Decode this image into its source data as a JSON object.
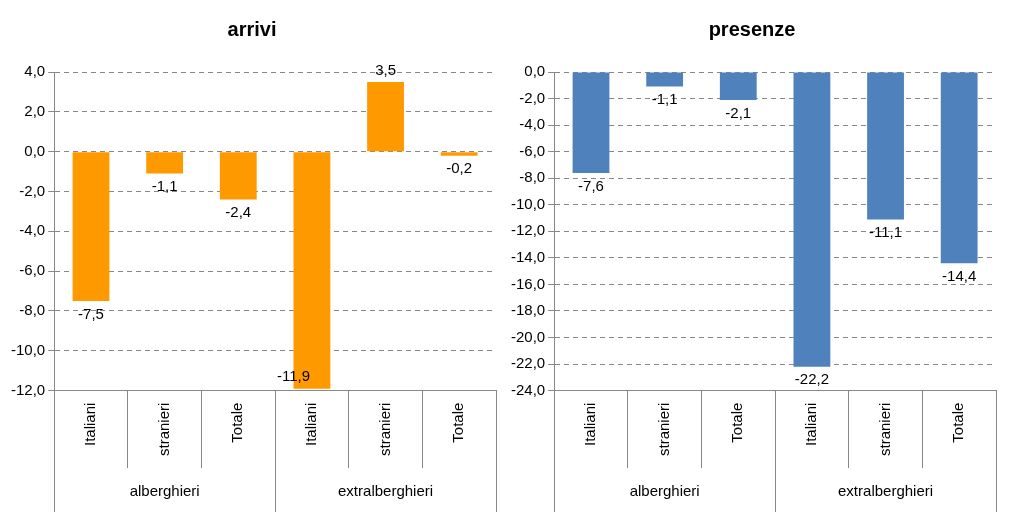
{
  "chart_data": [
    {
      "type": "bar",
      "title": "arrivi",
      "categories": [
        "Italiani",
        "stranieri",
        "Totale",
        "Italiani",
        "stranieri",
        "Totale"
      ],
      "values": [
        -7.5,
        -1.1,
        -2.4,
        -11.9,
        3.5,
        -0.2
      ],
      "color": "#ff9900",
      "value_labels": [
        "-7,5",
        "-1,1",
        "-2,4",
        "-11,9",
        "3,5",
        "-0,2"
      ],
      "ylim": [
        -12,
        4
      ],
      "yticks": [
        {
          "value": -12,
          "label": "-12,0"
        },
        {
          "value": -10,
          "label": "-10,0"
        },
        {
          "value": -8,
          "label": "-8,0"
        },
        {
          "value": -6,
          "label": "-6,0"
        },
        {
          "value": -4,
          "label": "-4,0"
        },
        {
          "value": -2,
          "label": "-2,0"
        },
        {
          "value": 0,
          "label": "0,0"
        },
        {
          "value": 2,
          "label": "2,0"
        },
        {
          "value": 4,
          "label": "4,0"
        }
      ],
      "grid": "y",
      "annotations": [
        "alberghieri",
        "extralberghieri"
      ]
    },
    {
      "type": "bar",
      "title": "presenze",
      "categories": [
        "Italiani",
        "stranieri",
        "Totale",
        "Italiani",
        "stranieri",
        "Totale"
      ],
      "values": [
        -7.6,
        -1.1,
        -2.1,
        -22.2,
        -11.1,
        -14.4
      ],
      "color": "#4f81bd",
      "value_labels": [
        "-7,6",
        "-1,1",
        "-2,1",
        "-22,2",
        "-11,1",
        "-14,4"
      ],
      "ylim": [
        -24,
        0
      ],
      "yticks": [
        {
          "value": -24,
          "label": "-24,0"
        },
        {
          "value": -22,
          "label": "-22,0"
        },
        {
          "value": -20,
          "label": "-20,0"
        },
        {
          "value": -18,
          "label": "-18,0"
        },
        {
          "value": -16,
          "label": "-16,0"
        },
        {
          "value": -14,
          "label": "-14,0"
        },
        {
          "value": -12,
          "label": "-12,0"
        },
        {
          "value": -10,
          "label": "-10,0"
        },
        {
          "value": -8,
          "label": "-8,0"
        },
        {
          "value": -6,
          "label": "-6,0"
        },
        {
          "value": -4,
          "label": "-4,0"
        },
        {
          "value": -2,
          "label": "-2,0"
        },
        {
          "value": 0,
          "label": "0,0"
        }
      ],
      "grid": "y",
      "annotations": [
        "alberghieri",
        "extralberghieri"
      ]
    }
  ]
}
